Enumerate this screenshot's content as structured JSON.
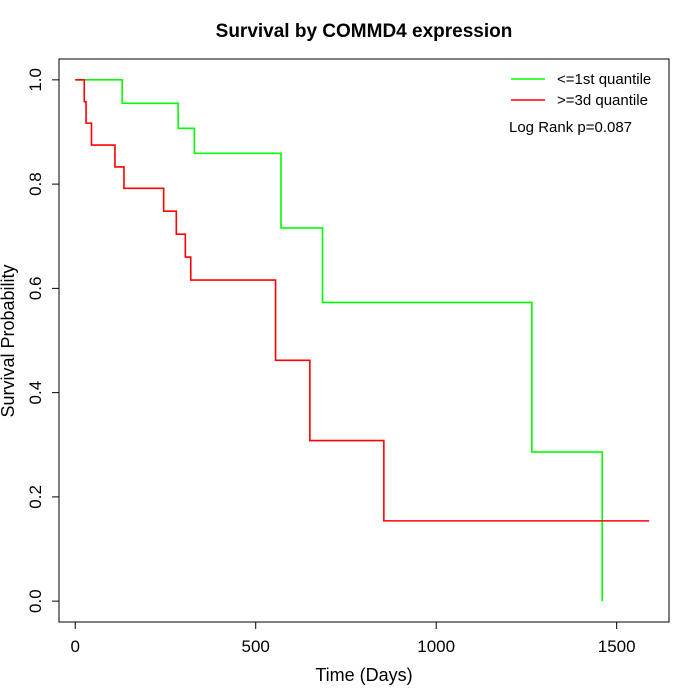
{
  "chart_data": {
    "type": "line",
    "step": true,
    "title": "Survival by COMMD4 expression",
    "xlabel": "Time (Days)",
    "ylabel": "Survival Probability",
    "xlim": [
      -45,
      1645
    ],
    "ylim": [
      -0.04,
      1.04
    ],
    "xticks": [
      0,
      500,
      1000,
      1500
    ],
    "yticks": [
      0.0,
      0.2,
      0.4,
      0.6,
      0.8,
      1.0
    ],
    "xtick_labels": [
      "0",
      "500",
      "1000",
      "1500"
    ],
    "ytick_labels": [
      "0.0",
      "0.2",
      "0.4",
      "0.6",
      "0.8",
      "1.0"
    ],
    "grid": false,
    "legend_position": "top-right",
    "annotation": "Log Rank p=0.087",
    "series": [
      {
        "name": "<=1st quantile",
        "color": "#00ff00",
        "x": [
          0,
          130,
          285,
          330,
          570,
          685,
          1265,
          1460,
          1460
        ],
        "y": [
          1.0,
          0.955,
          0.907,
          0.859,
          0.716,
          0.573,
          0.286,
          0.286,
          0.0
        ]
      },
      {
        "name": ">=3d quantile",
        "color": "#ff0000",
        "x": [
          0,
          25,
          30,
          45,
          110,
          135,
          245,
          280,
          305,
          320,
          555,
          650,
          855,
          1590
        ],
        "y": [
          1.0,
          0.958,
          0.917,
          0.875,
          0.833,
          0.792,
          0.748,
          0.704,
          0.66,
          0.616,
          0.462,
          0.308,
          0.154,
          0.154
        ]
      }
    ]
  }
}
